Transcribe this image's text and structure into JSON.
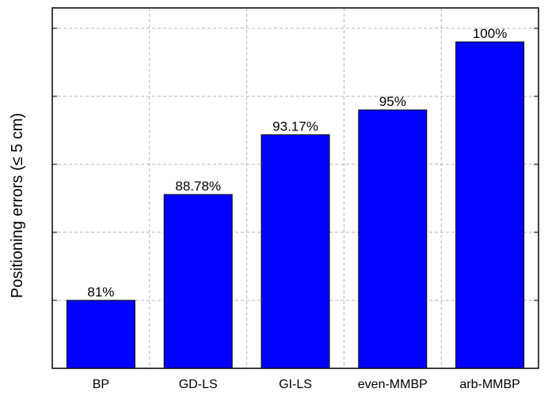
{
  "chart_data": {
    "type": "bar",
    "categories": [
      "BP",
      "GD-LS",
      "GI-LS",
      "even-MMBP",
      "arb-MMBP"
    ],
    "values": [
      81,
      88.78,
      93.17,
      95,
      100
    ],
    "data_labels": [
      "81%",
      "88.78%",
      "93.17%",
      "95%",
      "100%"
    ],
    "title": "",
    "xlabel": "",
    "ylabel": "Positioning errors (≤ 5 cm)",
    "ylim": [
      76,
      102.5
    ],
    "ygrid": [
      81,
      86,
      91,
      96,
      101
    ],
    "grid": true,
    "yticklabels_shown": false,
    "bar_color": "#0000ff"
  }
}
